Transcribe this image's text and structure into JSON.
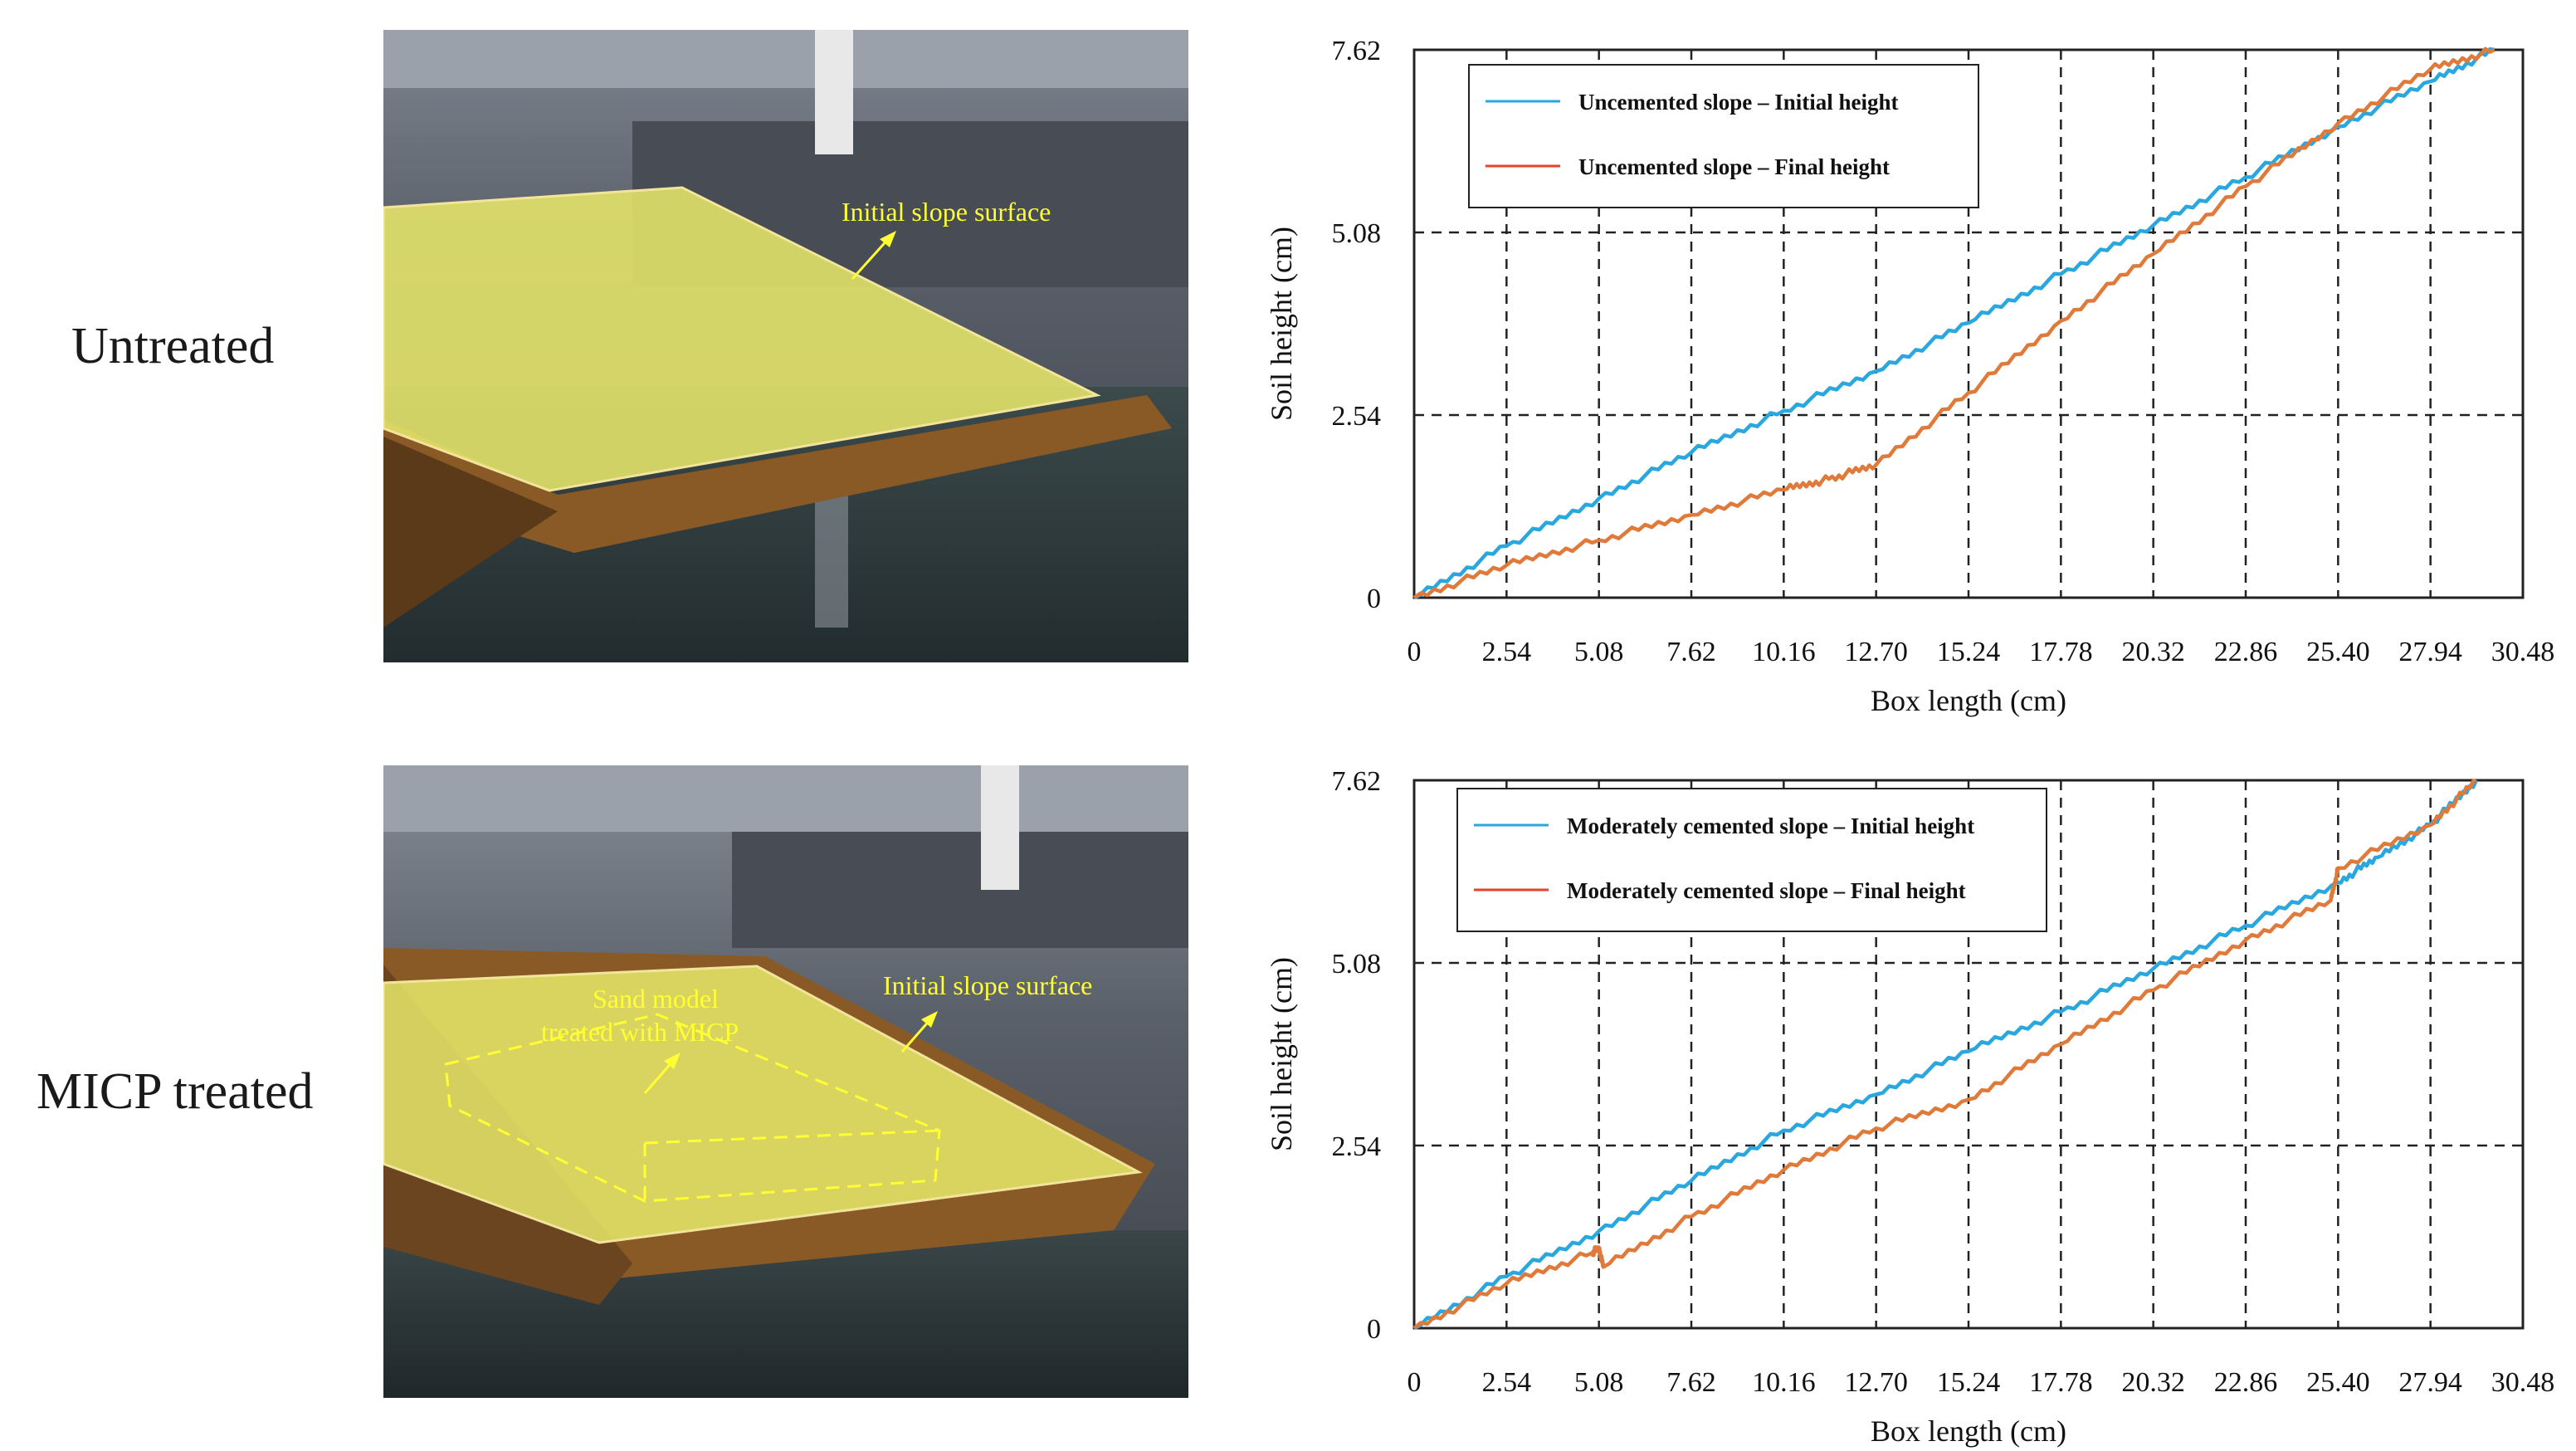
{
  "rows": [
    {
      "label": "Untreated",
      "photo": {
        "annotations": [
          "Initial slope surface"
        ]
      }
    },
    {
      "label": "MICP treated",
      "photo": {
        "annotations": [
          "Initial slope surface",
          "Sand model",
          "treated with MICP"
        ]
      }
    }
  ],
  "colors": {
    "initial": "#2aa7df",
    "final": "#e07a3a",
    "legend_final_swatch": "#e8402a",
    "overlay": "#e6e66a",
    "annotation": "#ffff33"
  },
  "chart_data": [
    {
      "type": "line",
      "xlabel": "Box length (cm)",
      "ylabel": "Soil height (cm)",
      "xticks": [
        "0",
        "2.54",
        "5.08",
        "7.62",
        "10.16",
        "12.70",
        "15.24",
        "17.78",
        "20.32",
        "22.86",
        "25.40",
        "27.94",
        "30.48"
      ],
      "yticks": [
        "0",
        "2.54",
        "5.08",
        "7.62"
      ],
      "xlim": [
        0,
        30.48
      ],
      "ylim": [
        0,
        7.62
      ],
      "grid": true,
      "legend": "top-left",
      "series": [
        {
          "name": "Uncemented slope  –  Initial height",
          "color": "#2aa7df",
          "x": [
            0,
            2.54,
            5.08,
            7.62,
            10.16,
            12.7,
            15.24,
            17.78,
            20.32,
            22.86,
            25.4,
            27.94,
            29.7
          ],
          "y": [
            0,
            0.72,
            1.38,
            2.02,
            2.6,
            3.15,
            3.82,
            4.5,
            5.18,
            5.85,
            6.55,
            7.18,
            7.62
          ]
        },
        {
          "name": "Uncemented slope  –  Final height",
          "color": "#e07a3a",
          "x": [
            0,
            2.54,
            5.08,
            7.62,
            10.16,
            11.4,
            12.7,
            15.24,
            17.78,
            20.32,
            22.86,
            25.4,
            27.94,
            29.7
          ],
          "y": [
            0,
            0.45,
            0.8,
            1.15,
            1.5,
            1.65,
            1.85,
            2.85,
            3.85,
            4.78,
            5.72,
            6.6,
            7.35,
            7.62
          ]
        }
      ]
    },
    {
      "type": "line",
      "xlabel": "Box length (cm)",
      "ylabel": "Soil height (cm)",
      "xticks": [
        "0",
        "2.54",
        "5.08",
        "7.62",
        "10.16",
        "12.70",
        "15.24",
        "17.78",
        "20.32",
        "22.86",
        "25.40",
        "27.94",
        "30.48"
      ],
      "yticks": [
        "0",
        "2.54",
        "5.08",
        "7.62"
      ],
      "xlim": [
        0,
        30.48
      ],
      "ylim": [
        0,
        7.62
      ],
      "grid": true,
      "legend": "top-left",
      "series": [
        {
          "name": "Moderately cemented slope  –  Initial height",
          "color": "#2aa7df",
          "x": [
            0,
            2.54,
            5.08,
            7.62,
            10.16,
            12.7,
            15.24,
            17.78,
            20.32,
            22.86,
            25.4,
            26.5,
            27.94,
            29.2
          ],
          "y": [
            0,
            0.72,
            1.35,
            2.05,
            2.75,
            3.25,
            3.85,
            4.4,
            5.0,
            5.6,
            6.2,
            6.55,
            7.0,
            7.62
          ]
        },
        {
          "name": "Moderately cemented slope  –  Final height",
          "color": "#e07a3a",
          "x": [
            0,
            2.54,
            4.9,
            5.08,
            5.2,
            7.62,
            10.16,
            12.7,
            15.24,
            17.78,
            20.32,
            22.86,
            25.2,
            25.4,
            27.94,
            29.2
          ],
          "y": [
            0,
            0.62,
            1.05,
            1.12,
            0.85,
            1.55,
            2.2,
            2.78,
            3.18,
            3.95,
            4.7,
            5.4,
            5.95,
            6.4,
            7.0,
            7.62
          ]
        }
      ]
    }
  ]
}
